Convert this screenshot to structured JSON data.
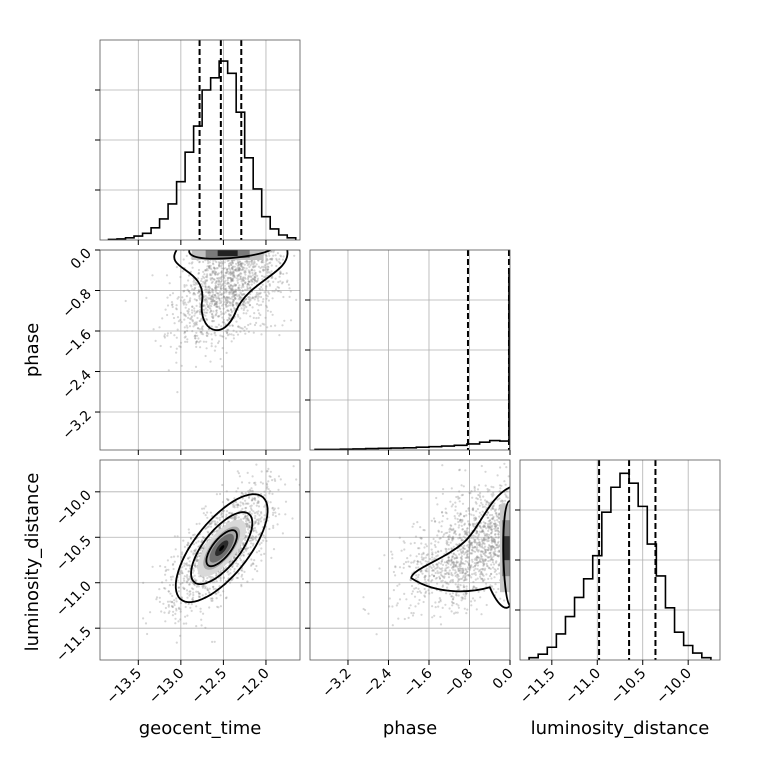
{
  "chart_data": {
    "type": "corner",
    "parameters": [
      "geocent_time",
      "phase",
      "luminosity_distance"
    ],
    "colors": {
      "hist": "#000000",
      "scatter": "#8a8a8a",
      "grid": "#b0b0b0",
      "quantile": "#000000"
    },
    "grid": true,
    "quantiles_shown": true,
    "axes": {
      "geocent_time": {
        "label": "geocent_time",
        "range": [
          -13.95,
          -11.6
        ],
        "ticks": [
          -13.5,
          -13.0,
          -12.5,
          -12.0
        ],
        "tick_labels": [
          "−13.5",
          "−13.0",
          "−12.5",
          "−12.0"
        ],
        "quantiles": [
          -12.78,
          -12.53,
          -12.29
        ]
      },
      "phase": {
        "label": "phase",
        "range": [
          -3.95,
          0.0
        ],
        "ticks": [
          -3.2,
          -2.4,
          -1.6,
          -0.8,
          0.0
        ],
        "tick_labels": [
          "−3.2",
          "−2.4",
          "−1.6",
          "−0.8",
          "0.0"
        ],
        "quantiles": [
          -0.83,
          -0.02
        ]
      },
      "luminosity_distance": {
        "label": "luminosity_distance",
        "range": [
          -11.85,
          -9.65
        ],
        "ticks": [
          -11.5,
          -11.0,
          -10.5,
          -10.0
        ],
        "tick_labels": [
          "−11.5",
          "−11.0",
          "−10.5",
          "−10.0"
        ],
        "quantiles": [
          -10.98,
          -10.65,
          -10.36
        ]
      }
    },
    "histograms": {
      "geocent_time": {
        "bin_edges": [
          -13.85,
          -13.75,
          -13.65,
          -13.55,
          -13.45,
          -13.35,
          -13.25,
          -13.15,
          -13.05,
          -12.95,
          -12.85,
          -12.75,
          -12.65,
          -12.55,
          -12.45,
          -12.35,
          -12.25,
          -12.15,
          -12.05,
          -11.95,
          -11.85,
          -11.75,
          -11.65
        ],
        "counts": [
          1,
          2,
          4,
          7,
          12,
          22,
          38,
          65,
          105,
          158,
          205,
          270,
          292,
          322,
          300,
          230,
          148,
          92,
          42,
          20,
          9,
          4
        ],
        "ymax": 360
      },
      "phase": {
        "bin_edges": [
          -3.85,
          -3.6,
          -3.35,
          -3.1,
          -2.85,
          -2.6,
          -2.35,
          -2.1,
          -1.85,
          -1.6,
          -1.35,
          -1.1,
          -0.85,
          -0.6,
          -0.4,
          -0.2,
          -0.02
        ],
        "counts": [
          2,
          2,
          3,
          4,
          5,
          6,
          7,
          8,
          10,
          12,
          14,
          17,
          22,
          28,
          34,
          32
        ],
        "spike_bin": {
          "edges": [
            -0.02,
            0.0
          ],
          "count": 650
        },
        "ymax": 720
      },
      "luminosity_distance": {
        "bin_edges": [
          -11.75,
          -11.65,
          -11.55,
          -11.45,
          -11.35,
          -11.25,
          -11.15,
          -11.05,
          -10.95,
          -10.85,
          -10.75,
          -10.65,
          -10.55,
          -10.45,
          -10.35,
          -10.25,
          -10.15,
          -10.05,
          -9.95,
          -9.85,
          -9.75
        ],
        "counts": [
          4,
          10,
          22,
          45,
          75,
          108,
          140,
          180,
          255,
          298,
          322,
          305,
          265,
          200,
          145,
          90,
          48,
          25,
          12,
          4
        ],
        "ymax": 345
      }
    },
    "scatter_2d": {
      "n_points": 1400,
      "phase_vs_geocent_time": {
        "mean": [
          -12.45,
          -1.0
        ],
        "std": [
          0.3,
          0.65
        ],
        "corr": 0.45
      },
      "luminosity_distance_vs_geocent_time": {
        "mean": [
          -12.52,
          -10.62
        ],
        "std": [
          0.3,
          0.33
        ],
        "corr": 0.7
      },
      "luminosity_distance_vs_phase": {
        "mean": [
          -0.9,
          -10.62
        ],
        "std": [
          0.75,
          0.33
        ],
        "corr": 0.55
      }
    }
  }
}
